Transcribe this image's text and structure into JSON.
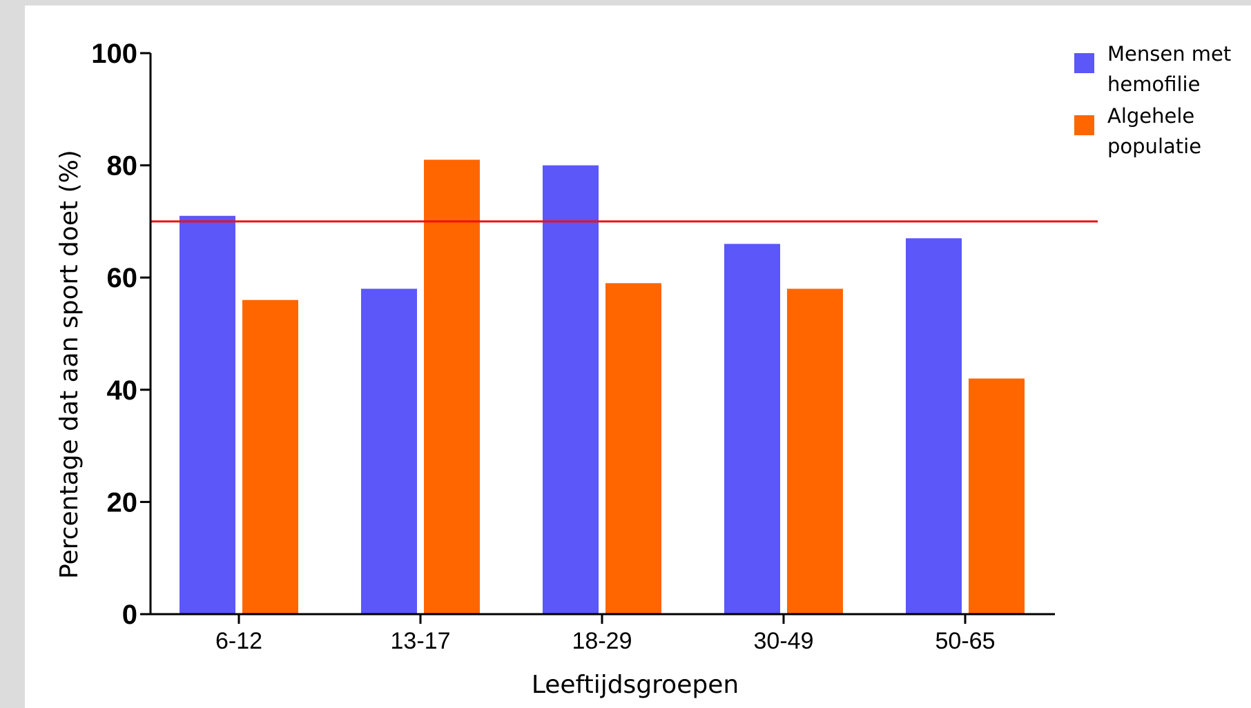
{
  "chart_data": {
    "type": "bar",
    "categories": [
      "6-12",
      "13-17",
      "18-29",
      "30-49",
      "50-65"
    ],
    "series": [
      {
        "name": "Mensen met hemofilie",
        "values": [
          71,
          58,
          80,
          66,
          67
        ],
        "color": "#5b57f9"
      },
      {
        "name": "Algehele populatie",
        "values": [
          56,
          81,
          59,
          58,
          42
        ],
        "color": "#ff6600"
      }
    ],
    "reference_line": {
      "value": 70,
      "color": "#ee1111"
    },
    "xlabel": "Leeftijdsgroepen",
    "ylabel": "Percentage dat aan sport doet (%)",
    "ylim": [
      0,
      100
    ],
    "yticks": [
      0,
      20,
      40,
      60,
      80,
      100
    ],
    "legend": {
      "placement": "top-right",
      "entries": [
        {
          "lines": [
            "Mensen met",
            "hemofilie"
          ]
        },
        {
          "lines": [
            "Algehele",
            "populatie"
          ]
        }
      ]
    },
    "grid": false
  }
}
